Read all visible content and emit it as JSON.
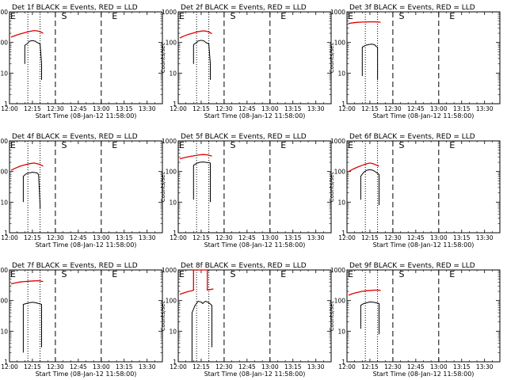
{
  "figure": {
    "x_label": "Start Time (08-Jan-12 11:58:00)",
    "y_label": "Counts/sec",
    "x_tick_labels": [
      "12:00",
      "12:15",
      "12:30",
      "12:45",
      "13:00",
      "13:15",
      "13:30"
    ],
    "y_tick_labels": [
      "1",
      "10",
      "100",
      "1000"
    ],
    "colors": {
      "events": "#000000",
      "lld": "#e00000"
    }
  },
  "chart_data": [
    {
      "type": "line",
      "title": "Det 1f BLACK = Events, RED = LLD",
      "x_unit": "minutes after 12:00",
      "xlim": [
        0,
        100
      ],
      "ylim": [
        1,
        1000
      ],
      "y_scale": "log",
      "grid": false,
      "markers": [
        {
          "label": "E",
          "x": 0
        },
        {
          "label": "S",
          "x": 35
        },
        {
          "label": "E",
          "x": 68
        }
      ],
      "dashed_lines": [
        30,
        60
      ],
      "dotted_lines": [
        12,
        20
      ],
      "series": [
        {
          "name": "LLD",
          "color": "red",
          "points": [
            [
              1,
              150
            ],
            [
              4,
              170
            ],
            [
              7,
              190
            ],
            [
              10,
              210
            ],
            [
              13,
              230
            ],
            [
              16,
              245
            ],
            [
              18,
              240
            ],
            [
              20,
              225
            ],
            [
              22,
              200
            ]
          ]
        },
        {
          "name": "Events",
          "color": "black",
          "points": [
            [
              10,
              20
            ],
            [
              10,
              80
            ],
            [
              12,
              95
            ],
            [
              13,
              110
            ],
            [
              15,
              115
            ],
            [
              17,
              110
            ],
            [
              18,
              100
            ],
            [
              20,
              90
            ],
            [
              21,
              20
            ],
            [
              21,
              6
            ]
          ]
        }
      ]
    },
    {
      "type": "line",
      "title": "Det 2f BLACK = Events, RED = LLD",
      "x_unit": "minutes after 12:00",
      "xlim": [
        0,
        100
      ],
      "ylim": [
        1,
        1000
      ],
      "y_scale": "log",
      "grid": false,
      "markers": [
        {
          "label": "E",
          "x": 0
        },
        {
          "label": "S",
          "x": 35
        },
        {
          "label": "E",
          "x": 68
        }
      ],
      "dashed_lines": [
        30,
        60
      ],
      "dotted_lines": [
        12,
        20
      ],
      "series": [
        {
          "name": "LLD",
          "color": "red",
          "points": [
            [
              1,
              140
            ],
            [
              4,
              165
            ],
            [
              7,
              185
            ],
            [
              10,
              205
            ],
            [
              13,
              225
            ],
            [
              16,
              240
            ],
            [
              18,
              235
            ],
            [
              20,
              220
            ],
            [
              22,
              195
            ]
          ]
        },
        {
          "name": "Events",
          "color": "black",
          "points": [
            [
              10,
              20
            ],
            [
              10,
              85
            ],
            [
              12,
              100
            ],
            [
              13,
              112
            ],
            [
              15,
              118
            ],
            [
              17,
              112
            ],
            [
              18,
              100
            ],
            [
              20,
              90
            ],
            [
              21,
              20
            ],
            [
              21,
              6
            ]
          ]
        }
      ]
    },
    {
      "type": "line",
      "title": "Det 3f BLACK = Events, RED = LLD",
      "x_unit": "minutes after 12:00",
      "xlim": [
        0,
        100
      ],
      "ylim": [
        1,
        1000
      ],
      "y_scale": "log",
      "grid": false,
      "markers": [
        {
          "label": "E",
          "x": 0
        },
        {
          "label": "S",
          "x": 35
        },
        {
          "label": "E",
          "x": 68
        }
      ],
      "dashed_lines": [
        30,
        60
      ],
      "dotted_lines": [
        12,
        20
      ],
      "series": [
        {
          "name": "LLD",
          "color": "red",
          "points": [
            [
              1,
              420
            ],
            [
              4,
              440
            ],
            [
              7,
              455
            ],
            [
              10,
              465
            ],
            [
              13,
              470
            ],
            [
              16,
              475
            ],
            [
              19,
              470
            ],
            [
              22,
              460
            ]
          ]
        },
        {
          "name": "Events",
          "color": "black",
          "points": [
            [
              10,
              8
            ],
            [
              10,
              70
            ],
            [
              12,
              80
            ],
            [
              14,
              85
            ],
            [
              16,
              88
            ],
            [
              18,
              85
            ],
            [
              19,
              75
            ],
            [
              20,
              70
            ],
            [
              20,
              6
            ]
          ]
        }
      ]
    },
    {
      "type": "line",
      "title": "Det 4f BLACK = Events, RED = LLD",
      "x_unit": "minutes after 12:00",
      "xlim": [
        0,
        100
      ],
      "ylim": [
        1,
        1000
      ],
      "y_scale": "log",
      "grid": false,
      "markers": [
        {
          "label": "E",
          "x": 0
        },
        {
          "label": "S",
          "x": 35
        },
        {
          "label": "E",
          "x": 68
        }
      ],
      "dashed_lines": [
        30,
        60
      ],
      "dotted_lines": [
        12,
        20
      ],
      "series": [
        {
          "name": "LLD",
          "color": "red",
          "points": [
            [
              1,
              110
            ],
            [
              4,
              130
            ],
            [
              7,
              150
            ],
            [
              10,
              165
            ],
            [
              13,
              180
            ],
            [
              16,
              190
            ],
            [
              18,
              180
            ],
            [
              20,
              170
            ],
            [
              22,
              150
            ]
          ]
        },
        {
          "name": "Events",
          "color": "black",
          "points": [
            [
              9,
              10
            ],
            [
              9,
              70
            ],
            [
              11,
              85
            ],
            [
              13,
              90
            ],
            [
              15,
              95
            ],
            [
              17,
              92
            ],
            [
              18,
              90
            ],
            [
              19,
              80
            ],
            [
              20,
              8
            ],
            [
              20,
              6
            ]
          ]
        }
      ]
    },
    {
      "type": "line",
      "title": "Det 5f BLACK = Events, RED = LLD",
      "x_unit": "minutes after 12:00",
      "xlim": [
        0,
        100
      ],
      "ylim": [
        1,
        1000
      ],
      "y_scale": "log",
      "grid": false,
      "markers": [
        {
          "label": "E",
          "x": 0
        },
        {
          "label": "S",
          "x": 35
        },
        {
          "label": "E",
          "x": 68
        }
      ],
      "dashed_lines": [
        30,
        60
      ],
      "dotted_lines": [
        12,
        20
      ],
      "series": [
        {
          "name": "LLD",
          "color": "red",
          "points": [
            [
              1,
              260
            ],
            [
              4,
              285
            ],
            [
              7,
              305
            ],
            [
              10,
              325
            ],
            [
              13,
              345
            ],
            [
              16,
              360
            ],
            [
              19,
              350
            ],
            [
              22,
              320
            ]
          ]
        },
        {
          "name": "Events",
          "color": "black",
          "points": [
            [
              10,
              12
            ],
            [
              10,
              160
            ],
            [
              12,
              185
            ],
            [
              14,
              200
            ],
            [
              16,
              205
            ],
            [
              18,
              200
            ],
            [
              20,
              195
            ],
            [
              21,
              190
            ],
            [
              21,
              10
            ]
          ]
        }
      ]
    },
    {
      "type": "line",
      "title": "Det 6f BLACK = Events, RED = LLD",
      "x_unit": "minutes after 12:00",
      "xlim": [
        0,
        100
      ],
      "ylim": [
        1,
        1000
      ],
      "y_scale": "log",
      "grid": false,
      "markers": [
        {
          "label": "E",
          "x": 0
        },
        {
          "label": "S",
          "x": 35
        },
        {
          "label": "E",
          "x": 68
        }
      ],
      "dashed_lines": [
        30,
        60
      ],
      "dotted_lines": [
        12,
        20
      ],
      "series": [
        {
          "name": "LLD",
          "color": "red",
          "points": [
            [
              1,
              100
            ],
            [
              4,
              120
            ],
            [
              7,
              140
            ],
            [
              10,
              160
            ],
            [
              13,
              180
            ],
            [
              15,
              190
            ],
            [
              17,
              180
            ],
            [
              19,
              165
            ],
            [
              21,
              150
            ]
          ]
        },
        {
          "name": "Events",
          "color": "black",
          "points": [
            [
              9,
              12
            ],
            [
              9,
              70
            ],
            [
              11,
              95
            ],
            [
              13,
              110
            ],
            [
              15,
              115
            ],
            [
              17,
              110
            ],
            [
              19,
              95
            ],
            [
              21,
              80
            ],
            [
              21,
              8
            ]
          ]
        }
      ]
    },
    {
      "type": "line",
      "title": "Det 7f BLACK = Events, RED = LLD",
      "x_unit": "minutes after 12:00",
      "xlim": [
        0,
        100
      ],
      "ylim": [
        1,
        1000
      ],
      "y_scale": "log",
      "grid": false,
      "markers": [
        {
          "label": "E",
          "x": 0
        },
        {
          "label": "S",
          "x": 35
        },
        {
          "label": "E",
          "x": 68
        }
      ],
      "dashed_lines": [
        30,
        60
      ],
      "dotted_lines": [
        12,
        20
      ],
      "series": [
        {
          "name": "LLD",
          "color": "red",
          "points": [
            [
              1,
              350
            ],
            [
              4,
              380
            ],
            [
              7,
              405
            ],
            [
              10,
              420
            ],
            [
              13,
              430
            ],
            [
              16,
              440
            ],
            [
              19,
              445
            ],
            [
              22,
              420
            ]
          ]
        },
        {
          "name": "Events",
          "color": "black",
          "points": [
            [
              9,
              2
            ],
            [
              9,
              75
            ],
            [
              11,
              80
            ],
            [
              13,
              85
            ],
            [
              15,
              88
            ],
            [
              17,
              85
            ],
            [
              19,
              80
            ],
            [
              21,
              75
            ],
            [
              21,
              3
            ]
          ]
        }
      ]
    },
    {
      "type": "line",
      "title": "Det 8f BLACK = Events, RED = LLD",
      "x_unit": "minutes after 12:00",
      "xlim": [
        0,
        100
      ],
      "ylim": [
        1,
        1000
      ],
      "y_scale": "log",
      "grid": false,
      "markers": [
        {
          "label": "E",
          "x": 0
        },
        {
          "label": "S",
          "x": 35
        },
        {
          "label": "E",
          "x": 68
        }
      ],
      "dashed_lines": [
        30,
        60
      ],
      "dotted_lines": [
        12,
        20
      ],
      "series": [
        {
          "name": "LLD",
          "color": "red",
          "points": [
            [
              1,
              160
            ],
            [
              4,
              180
            ],
            [
              7,
              200
            ],
            [
              9,
              210
            ],
            [
              10,
              220
            ],
            [
              10,
              1000
            ],
            [
              19,
              1000
            ],
            [
              19,
              220
            ],
            [
              21,
              230
            ],
            [
              23,
              240
            ]
          ]
        },
        {
          "name": "Events",
          "color": "black",
          "points": [
            [
              9,
              1
            ],
            [
              9,
              40
            ],
            [
              11,
              70
            ],
            [
              13,
              95
            ],
            [
              15,
              90
            ],
            [
              16,
              80
            ],
            [
              17,
              90
            ],
            [
              18,
              95
            ],
            [
              20,
              85
            ],
            [
              22,
              70
            ],
            [
              22,
              3
            ]
          ]
        }
      ]
    },
    {
      "type": "line",
      "title": "Det 9f BLACK = Events, RED = LLD",
      "x_unit": "minutes after 12:00",
      "xlim": [
        0,
        100
      ],
      "ylim": [
        1,
        1000
      ],
      "y_scale": "log",
      "grid": false,
      "markers": [
        {
          "label": "E",
          "x": 0
        },
        {
          "label": "S",
          "x": 35
        },
        {
          "label": "E",
          "x": 68
        }
      ],
      "dashed_lines": [
        30,
        60
      ],
      "dotted_lines": [
        12,
        20
      ],
      "series": [
        {
          "name": "LLD",
          "color": "red",
          "points": [
            [
              1,
              150
            ],
            [
              4,
              170
            ],
            [
              7,
              185
            ],
            [
              10,
              200
            ],
            [
              13,
              210
            ],
            [
              16,
              215
            ],
            [
              19,
              220
            ],
            [
              22,
              215
            ]
          ]
        },
        {
          "name": "Events",
          "color": "black",
          "points": [
            [
              9,
              12
            ],
            [
              9,
              70
            ],
            [
              11,
              80
            ],
            [
              13,
              85
            ],
            [
              15,
              90
            ],
            [
              17,
              88
            ],
            [
              19,
              85
            ],
            [
              21,
              80
            ],
            [
              21,
              8
            ]
          ]
        }
      ]
    }
  ]
}
